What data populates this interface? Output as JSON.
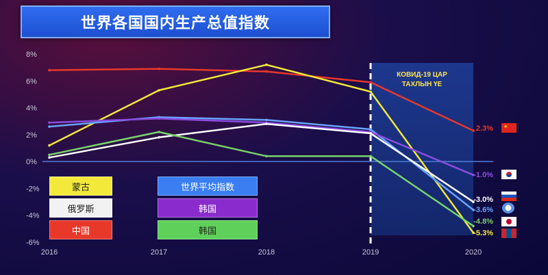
{
  "title": "世界各国国内生产总值指数",
  "covid_label_line1": "КОВИД-19 ЦАР",
  "covid_label_line2": "ТАХЛЫН ҮЕ",
  "legend": [
    {
      "label": "蒙古",
      "color": "#f3e93a",
      "text_color": "#222222"
    },
    {
      "label": "俄罗斯",
      "color": "#f2f2f2",
      "text_color": "#222222"
    },
    {
      "label": "中国",
      "color": "#e8382a",
      "text_color": "#ffffff"
    },
    {
      "label": "世界平均指数",
      "color": "#3a7ef2",
      "text_color": "#ffffff"
    },
    {
      "label": "韩国",
      "color": "#8a2ccc",
      "text_color": "#ffffff"
    },
    {
      "label": "韩国",
      "color": "#5fd15a",
      "text_color": "#222222"
    }
  ],
  "colors": {
    "china": "#e8382a",
    "mongolia": "#f3e93a",
    "russia": "#ffffff",
    "world": "#6aa3ff",
    "korea": "#8a4de0",
    "japan": "#7ad36a"
  },
  "chart_data": {
    "type": "line",
    "x": [
      2016,
      2017,
      2018,
      2019,
      2020
    ],
    "ylim": [
      -6,
      8
    ],
    "yticks": [
      8,
      6,
      4,
      2,
      0,
      -2,
      -4,
      -6
    ],
    "ytick_labels": [
      "8%",
      "6%",
      "4%",
      "2%",
      "0%",
      "-2%",
      "-4%",
      "-6%"
    ],
    "xtick_labels": [
      "2016",
      "2017",
      "2018",
      "2019",
      "2020"
    ],
    "series": [
      {
        "key": "china",
        "values": [
          6.8,
          6.9,
          6.7,
          5.9,
          2.3
        ],
        "end_label": "2.3%"
      },
      {
        "key": "mongolia",
        "values": [
          1.2,
          5.3,
          7.2,
          5.2,
          -5.3
        ],
        "end_label": "-5.3%"
      },
      {
        "key": "world",
        "values": [
          2.6,
          3.3,
          3.1,
          2.4,
          -3.6
        ],
        "end_label": "-3.6%"
      },
      {
        "key": "korea",
        "values": [
          2.9,
          3.2,
          2.9,
          2.2,
          -1.0
        ],
        "end_label": "-1.0%"
      },
      {
        "key": "russia",
        "values": [
          0.3,
          1.8,
          2.8,
          2.1,
          -3.0
        ],
        "end_label": "-3.0%"
      },
      {
        "key": "japan",
        "values": [
          0.5,
          2.2,
          0.4,
          0.4,
          -4.8
        ],
        "end_label": "-4.8%"
      }
    ]
  },
  "flags": [
    "china-flag",
    "korea-flag",
    "russia-flag",
    "un-flag",
    "japan-flag",
    "mongolia-flag"
  ]
}
